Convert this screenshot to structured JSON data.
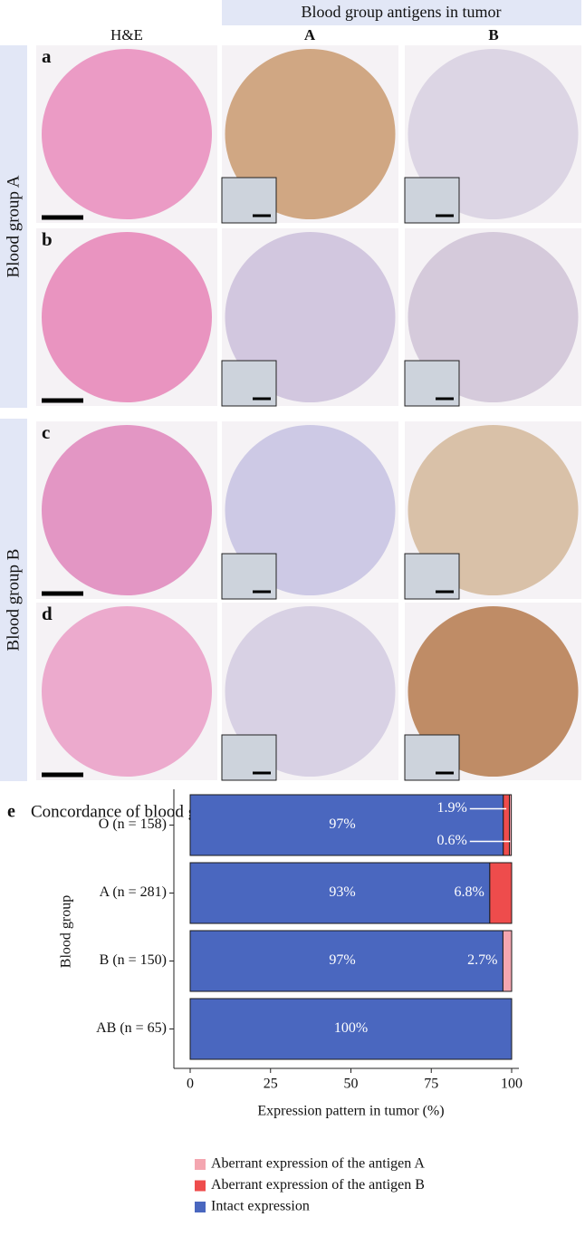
{
  "figure": {
    "header": "Blood group antigens in tumor",
    "columns": [
      "H&E",
      "A",
      "B"
    ],
    "rows": [
      "a",
      "b",
      "c",
      "d"
    ],
    "groups": [
      "Blood group A",
      "Blood group B"
    ],
    "panel_e_letter": "e"
  },
  "chart_data": {
    "type": "bar",
    "orientation": "horizontal",
    "stacked": true,
    "title": "Concordance of blood group antigen experssions in blood and tumor",
    "xlabel": "Expression pattern in tumor (%)",
    "ylabel": "Blood group",
    "categories": [
      "O (n = 158)",
      "A (n = 281)",
      "B (n = 150)",
      "AB (n = 65)"
    ],
    "series": [
      {
        "name": "Aberrant expression of the antigen A",
        "color": "#f4a6b0",
        "values": [
          0.6,
          0,
          2.7,
          0
        ],
        "value_labels": [
          "0.6%",
          null,
          "2.7%",
          null
        ]
      },
      {
        "name": "Aberrant expression of the antigen B",
        "color": "#ee4c4c",
        "values": [
          1.9,
          6.8,
          0,
          0
        ],
        "value_labels": [
          "1.9%",
          "6.8%",
          null,
          null
        ]
      },
      {
        "name": "Intact expression",
        "color": "#4a67bf",
        "values": [
          97.4,
          93.2,
          97.3,
          100
        ],
        "value_labels": [
          "97%",
          "93%",
          "97%",
          "100%"
        ]
      }
    ],
    "xlim": [
      0,
      100
    ],
    "xticks": [
      0,
      25,
      50,
      75,
      100
    ]
  }
}
